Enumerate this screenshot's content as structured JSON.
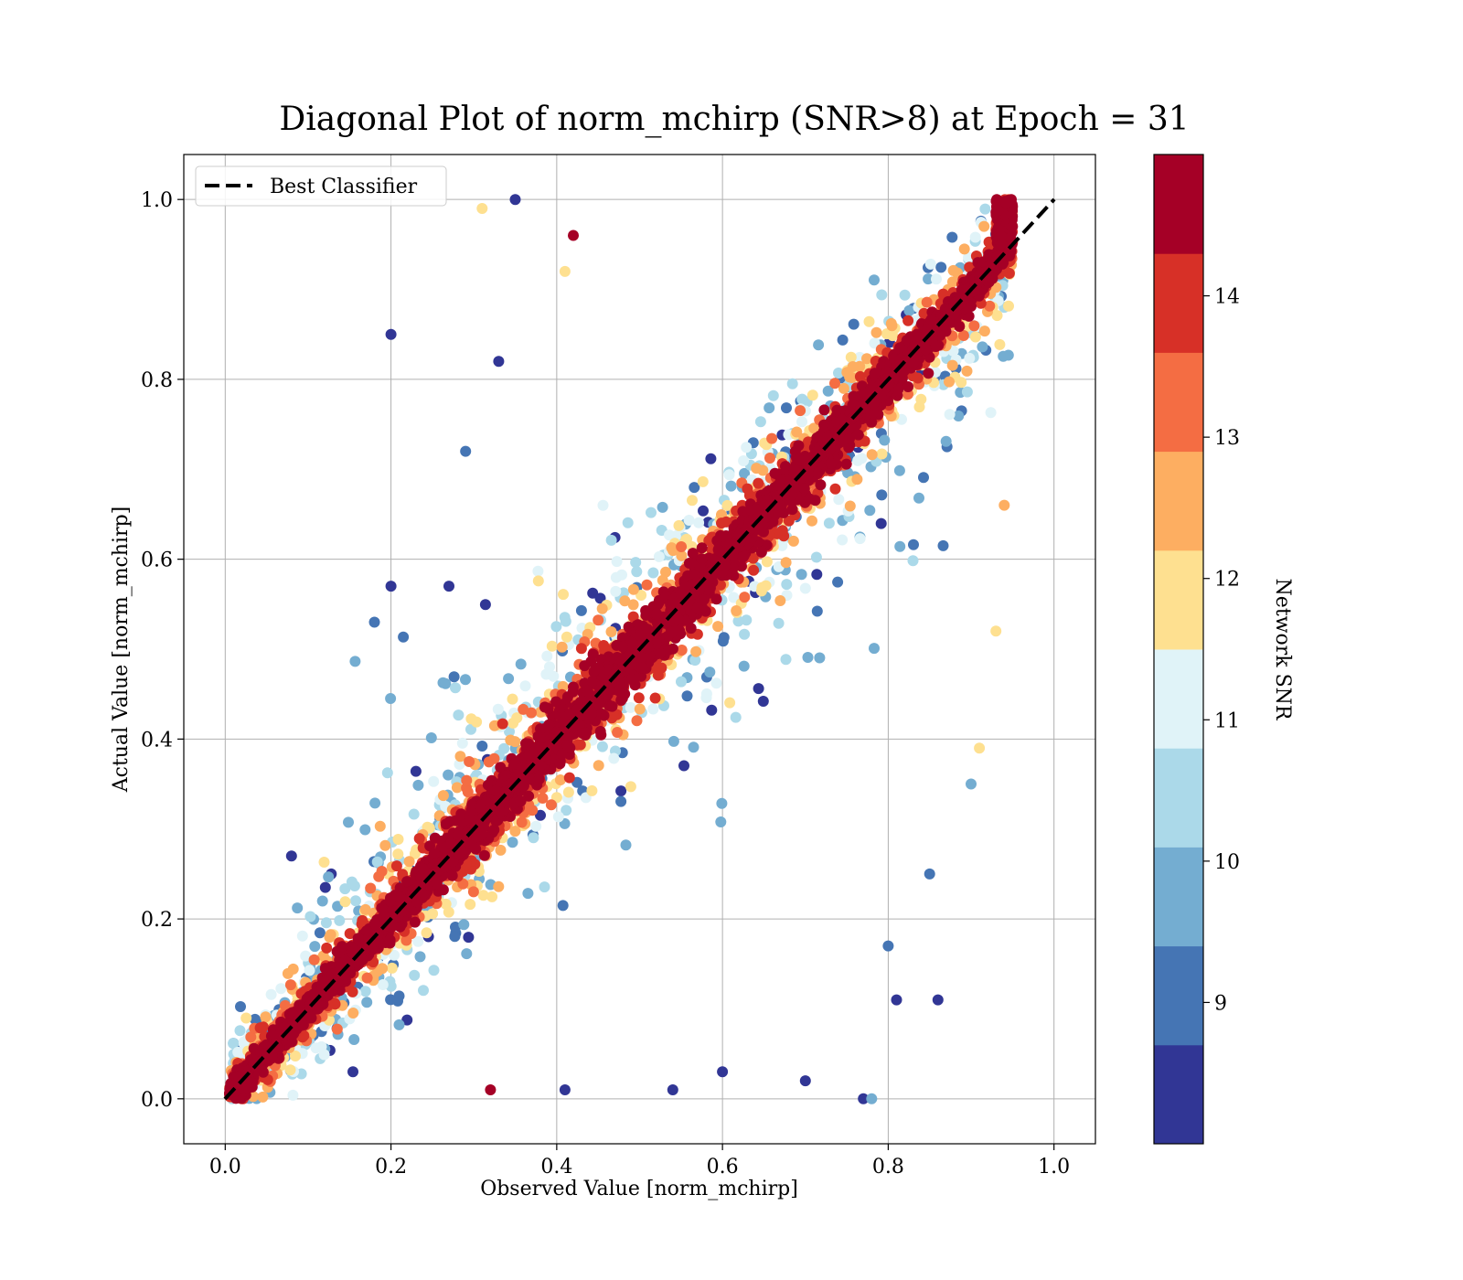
{
  "chart_data": {
    "type": "scatter",
    "title": "Diagonal Plot of norm_mchirp (SNR>8) at Epoch = 31",
    "xlabel": "Observed Value [norm_mchirp]",
    "ylabel": "Actual Value [norm_mchirp]",
    "xlim": [
      -0.05,
      1.05
    ],
    "ylim": [
      -0.05,
      1.05
    ],
    "x_ticks": [
      "0.0",
      "0.2",
      "0.4",
      "0.6",
      "0.8",
      "1.0"
    ],
    "y_ticks": [
      "0.0",
      "0.2",
      "0.4",
      "0.6",
      "0.8",
      "1.0"
    ],
    "grid": true,
    "legend": {
      "placement": "upper-left",
      "entries": [
        "Best Classifier"
      ]
    },
    "reference_line": {
      "name": "Best Classifier",
      "x": [
        0,
        1
      ],
      "y": [
        0,
        1
      ],
      "style": "dashed",
      "color": "#000000"
    },
    "colorbar": {
      "label": "Network SNR",
      "range": [
        8,
        15
      ],
      "ticks": [
        "9",
        "10",
        "11",
        "12",
        "13",
        "14"
      ],
      "colors": [
        "#313695",
        "#4575b4",
        "#74add1",
        "#abd9e9",
        "#e0f3f8",
        "#fee090",
        "#fdae61",
        "#f46d43",
        "#d73027",
        "#a50026"
      ]
    },
    "points_shown": "several thousand points scattered around y = x, colored by Network SNR (red = high SNR concentrated along the diagonal, blue = low SNR spread out)",
    "sample_outlier_points": [
      {
        "x": 0.2,
        "y": 0.85,
        "snr": 8.3
      },
      {
        "x": 0.33,
        "y": 0.82,
        "snr": 8.3
      },
      {
        "x": 0.35,
        "y": 1.0,
        "snr": 8.3
      },
      {
        "x": 0.31,
        "y": 0.99,
        "snr": 11.8
      },
      {
        "x": 0.42,
        "y": 0.96,
        "snr": 14.6
      },
      {
        "x": 0.41,
        "y": 0.92,
        "snr": 11.8
      },
      {
        "x": 0.29,
        "y": 0.72,
        "snr": 9.3
      },
      {
        "x": 0.2,
        "y": 0.57,
        "snr": 8.3
      },
      {
        "x": 0.18,
        "y": 0.53,
        "snr": 9.3
      },
      {
        "x": 0.27,
        "y": 0.57,
        "snr": 8.3
      },
      {
        "x": 0.08,
        "y": 0.27,
        "snr": 8.3
      },
      {
        "x": 0.94,
        "y": 0.66,
        "snr": 12.6
      },
      {
        "x": 0.93,
        "y": 0.52,
        "snr": 11.8
      },
      {
        "x": 0.91,
        "y": 0.39,
        "snr": 11.8
      },
      {
        "x": 0.9,
        "y": 0.35,
        "snr": 9.8
      },
      {
        "x": 0.86,
        "y": 0.11,
        "snr": 8.3
      },
      {
        "x": 0.81,
        "y": 0.11,
        "snr": 8.3
      },
      {
        "x": 0.8,
        "y": 0.17,
        "snr": 9.3
      },
      {
        "x": 0.78,
        "y": 0.0,
        "snr": 9.8
      },
      {
        "x": 0.77,
        "y": 0.0,
        "snr": 8.3
      },
      {
        "x": 0.6,
        "y": 0.03,
        "snr": 8.3
      },
      {
        "x": 0.54,
        "y": 0.01,
        "snr": 8.3
      },
      {
        "x": 0.41,
        "y": 0.01,
        "snr": 8.3
      },
      {
        "x": 0.32,
        "y": 0.01,
        "snr": 14.5
      },
      {
        "x": 0.7,
        "y": 0.02,
        "snr": 8.3
      },
      {
        "x": 0.85,
        "y": 0.25,
        "snr": 9.3
      }
    ]
  }
}
